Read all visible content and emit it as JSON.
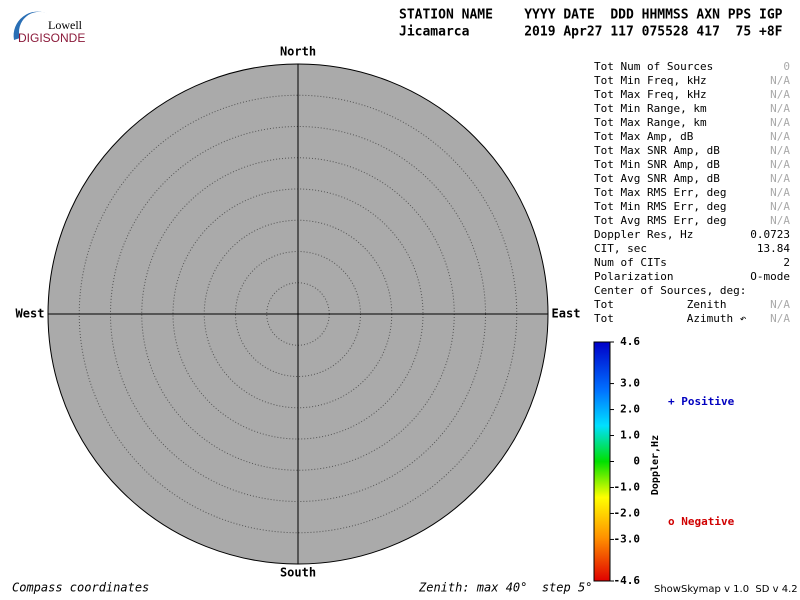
{
  "logo": {
    "top": "Lowell",
    "bottom": "DIGISONDE"
  },
  "header": {
    "labels": "STATION NAME    YYYY DATE  DDD HHMMSS AXN PPS IGP",
    "values": "Jicamarca       2019 Apr27 117 075528 417  75 +8F"
  },
  "compass": {
    "north": "North",
    "south": "South",
    "west": "West",
    "east": "East"
  },
  "stats": [
    {
      "label": "Tot Num of Sources",
      "value": 0,
      "muted": true
    },
    {
      "label": "Tot Min Freq, kHz",
      "value": "N/A",
      "muted": true
    },
    {
      "label": "Tot Max Freq, kHz",
      "value": "N/A",
      "muted": true
    },
    {
      "label": "Tot Min Range, km",
      "value": "N/A",
      "muted": true
    },
    {
      "label": "Tot Max Range, km",
      "value": "N/A",
      "muted": true
    },
    {
      "label": "Tot Max Amp, dB",
      "value": "N/A",
      "muted": true
    },
    {
      "label": "Tot Max SNR Amp, dB",
      "value": "N/A",
      "muted": true
    },
    {
      "label": "Tot Min SNR Amp, dB",
      "value": "N/A",
      "muted": true
    },
    {
      "label": "Tot Avg SNR Amp, dB",
      "value": "N/A",
      "muted": true
    },
    {
      "label": "Tot Max RMS Err, deg",
      "value": "N/A",
      "muted": true
    },
    {
      "label": "Tot Min RMS Err, deg",
      "value": "N/A",
      "muted": true
    },
    {
      "label": "Tot Avg RMS Err, deg",
      "value": "N/A",
      "muted": true
    },
    {
      "label": "Doppler Res, Hz",
      "value": 0.0723,
      "muted": false
    },
    {
      "label": "CIT, sec",
      "value": 13.84,
      "muted": false
    },
    {
      "label": "Num of CITs",
      "value": 2,
      "muted": false
    },
    {
      "label": "Polarization",
      "value": "O-mode",
      "muted": false
    },
    {
      "label": "Center of Sources, deg:",
      "muted": false
    },
    {
      "label": "Tot           Zenith",
      "value": "N/A",
      "muted": true
    },
    {
      "label": "Tot           Azimuth ↶",
      "value": "N/A",
      "muted": true
    }
  ],
  "colorbar": {
    "title": "Doppler,Hz",
    "ticks": [
      4.6,
      {
        "value": 3,
        "label": "3.0"
      },
      {
        "value": 2,
        "label": "2.0"
      },
      {
        "value": 1,
        "label": "1.0"
      },
      0,
      {
        "value": -1,
        "label": "-1.0"
      },
      {
        "value": -2,
        "label": "-2.0"
      },
      {
        "value": -3,
        "label": "-3.0"
      },
      -4.6
    ]
  },
  "legend": {
    "positive": "+ Positive",
    "negative": "o Negative"
  },
  "footer": {
    "left": "Compass coordinates",
    "center": "Zenith: max 40°  step 5°",
    "right": "ShowSkymap v 1.0  SD v 4.2"
  }
}
